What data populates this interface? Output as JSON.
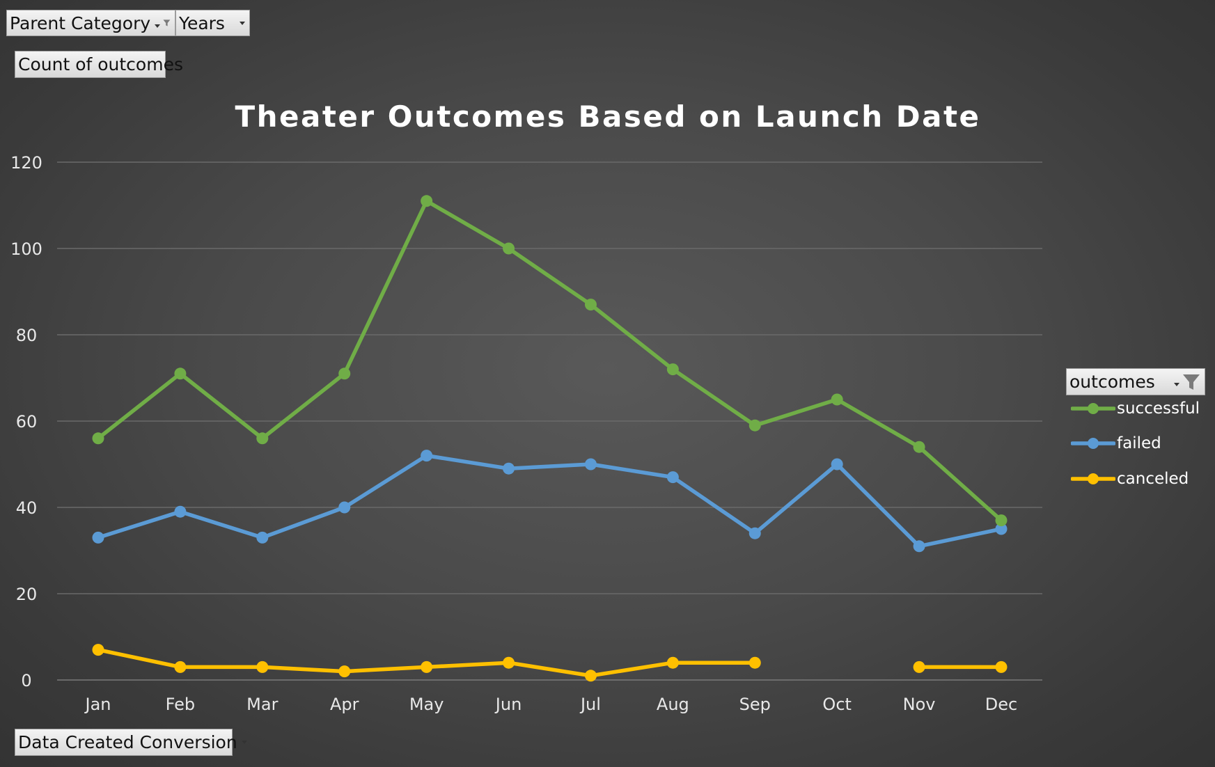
{
  "pivot_fields": {
    "parent_category": "Parent Category",
    "years": "Years",
    "count_of_outcomes": "Count of outcomes",
    "data_created_conversion": "Data Created Conversion",
    "outcomes": "outcomes"
  },
  "colors": {
    "successful": "#70ad47",
    "failed": "#5b9bd5",
    "canceled": "#ffc000",
    "gridline": "#6a6a6a",
    "text": "#e8e8e8",
    "title": "#ffffff"
  },
  "chart_data": {
    "type": "line",
    "title": "Theater Outcomes Based on Launch Date",
    "xlabel": "",
    "ylabel": "",
    "categories": [
      "Jan",
      "Feb",
      "Mar",
      "Apr",
      "May",
      "Jun",
      "Jul",
      "Aug",
      "Sep",
      "Oct",
      "Nov",
      "Dec"
    ],
    "ylim": [
      0,
      120
    ],
    "yticks": [
      "0",
      "20",
      "40",
      "60",
      "80",
      "100",
      "120"
    ],
    "grid": true,
    "legend_position": "right",
    "series": [
      {
        "name": "successful",
        "values": [
          56,
          71,
          56,
          71,
          111,
          100,
          87,
          72,
          59,
          65,
          54,
          37
        ]
      },
      {
        "name": "failed",
        "values": [
          33,
          39,
          33,
          40,
          52,
          49,
          50,
          47,
          34,
          50,
          31,
          35
        ]
      },
      {
        "name": "canceled",
        "values": [
          7,
          3,
          3,
          2,
          3,
          4,
          1,
          4,
          4,
          null,
          3,
          3
        ]
      }
    ]
  }
}
